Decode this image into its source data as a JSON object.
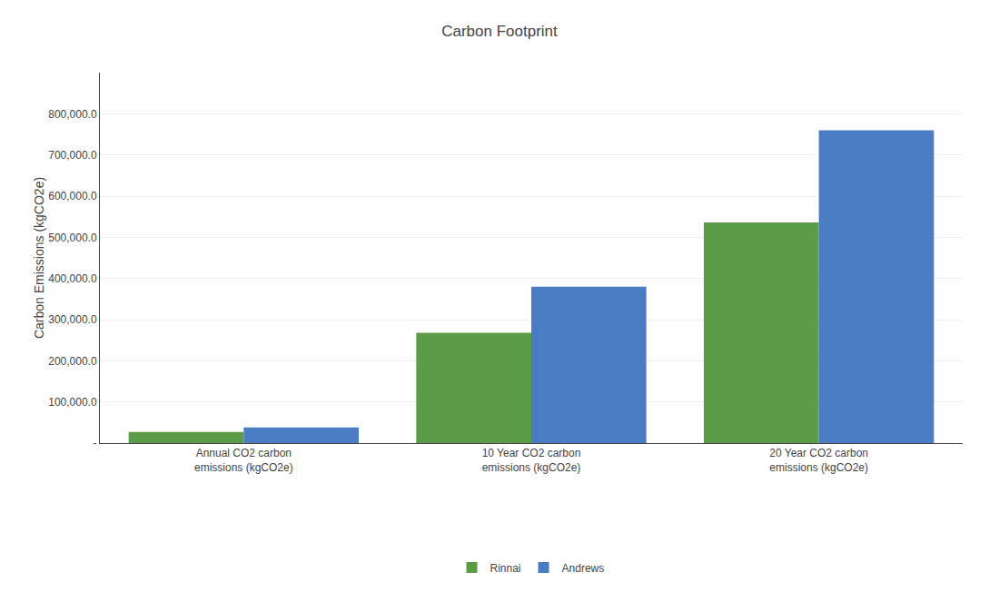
{
  "chart_data": {
    "type": "bar",
    "title": "Carbon Footprint",
    "ylabel": "Carbon Emissions (kgCO2e)",
    "categories": [
      "Annual CO2 carbon\nemissions (kgCO2e)",
      "10 Year CO2 carbon\nemissions (kgCO2e)",
      "20 Year CO2 carbon\nemissions (kgCO2e)"
    ],
    "series": [
      {
        "name": "Rinnai",
        "color": "#5B9C47",
        "values": [
          26800,
          268000,
          536000
        ]
      },
      {
        "name": "Andrews",
        "color": "#4A7CC4",
        "values": [
          38000,
          380000,
          760000
        ]
      }
    ],
    "ylim": [
      0,
      900000
    ],
    "yticks": [
      {
        "value": 0,
        "label": "-"
      },
      {
        "value": 100000,
        "label": "100,000.0"
      },
      {
        "value": 200000,
        "label": "200,000.0"
      },
      {
        "value": 300000,
        "label": "300,000.0"
      },
      {
        "value": 400000,
        "label": "400,000.0"
      },
      {
        "value": 500000,
        "label": "500,000.0"
      },
      {
        "value": 600000,
        "label": "600,000.0"
      },
      {
        "value": 700000,
        "label": "700,000.0"
      },
      {
        "value": 800000,
        "label": "800,000.0"
      }
    ],
    "grid": true,
    "legend": "bottom"
  }
}
